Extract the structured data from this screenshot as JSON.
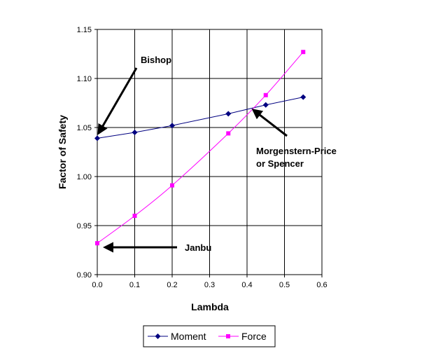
{
  "chart_data": {
    "type": "line",
    "title": "",
    "xlabel": "Lambda",
    "ylabel": "Factor of Safety",
    "xlim": [
      0,
      0.6
    ],
    "ylim": [
      0.9,
      1.15
    ],
    "xticks": [
      "0.0",
      "0.1",
      "0.2",
      "0.3",
      "0.4",
      "0.5",
      "0.6"
    ],
    "yticks": [
      "0.90",
      "0.95",
      "1.00",
      "1.05",
      "1.10",
      "1.15"
    ],
    "grid": true,
    "legend_position": "bottom",
    "series": [
      {
        "name": "Moment",
        "color": "#000080",
        "marker": "diamond",
        "x": [
          0.0,
          0.1,
          0.2,
          0.35,
          0.45,
          0.55
        ],
        "y": [
          1.039,
          1.045,
          1.052,
          1.064,
          1.073,
          1.081
        ]
      },
      {
        "name": "Force",
        "color": "#ff00ff",
        "marker": "square",
        "x": [
          0.0,
          0.1,
          0.2,
          0.35,
          0.45,
          0.55
        ],
        "y": [
          0.932,
          0.96,
          0.991,
          1.044,
          1.083,
          1.127
        ]
      }
    ],
    "annotations": [
      {
        "text": "Bishop"
      },
      {
        "text": "Morgenstern-Price"
      },
      {
        "text": "or Spencer"
      },
      {
        "text": "Janbu"
      }
    ]
  }
}
